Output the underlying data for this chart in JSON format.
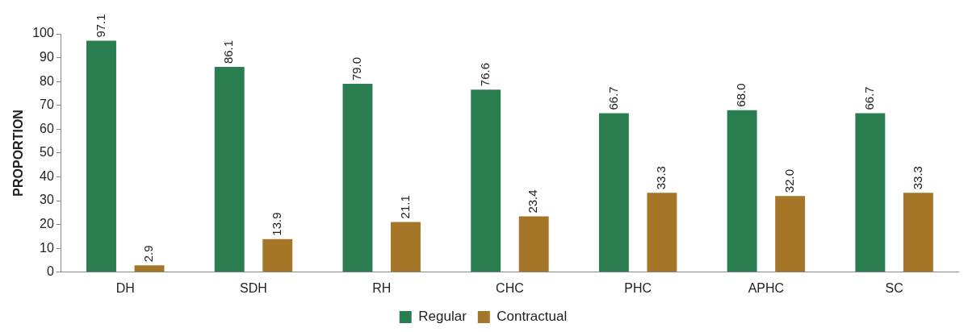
{
  "chart_data": {
    "type": "bar",
    "ylabel": "PROPORTION",
    "categories": [
      "DH",
      "SDH",
      "RH",
      "CHC",
      "PHC",
      "APHC",
      "SC"
    ],
    "series": [
      {
        "name": "Regular",
        "color": "#2a7d4f",
        "values": [
          97.1,
          86.1,
          79.0,
          76.6,
          66.7,
          68.0,
          66.7
        ],
        "value_labels": [
          "97.1",
          "86.1",
          "79.0",
          "76.6",
          "66.7",
          "68.0",
          "66.7"
        ]
      },
      {
        "name": "Contractual",
        "color": "#a57628",
        "values": [
          2.9,
          13.9,
          21.1,
          23.4,
          33.3,
          32.0,
          33.3
        ],
        "value_labels": [
          "2.9",
          "13.9",
          "21.1",
          "23.4",
          "33.3",
          "32.0",
          "33.3"
        ]
      }
    ],
    "ylim": [
      0,
      100
    ],
    "yticks": [
      0,
      10,
      20,
      30,
      40,
      50,
      60,
      70,
      80,
      90,
      100
    ],
    "grid": false,
    "legend": "bottom"
  }
}
